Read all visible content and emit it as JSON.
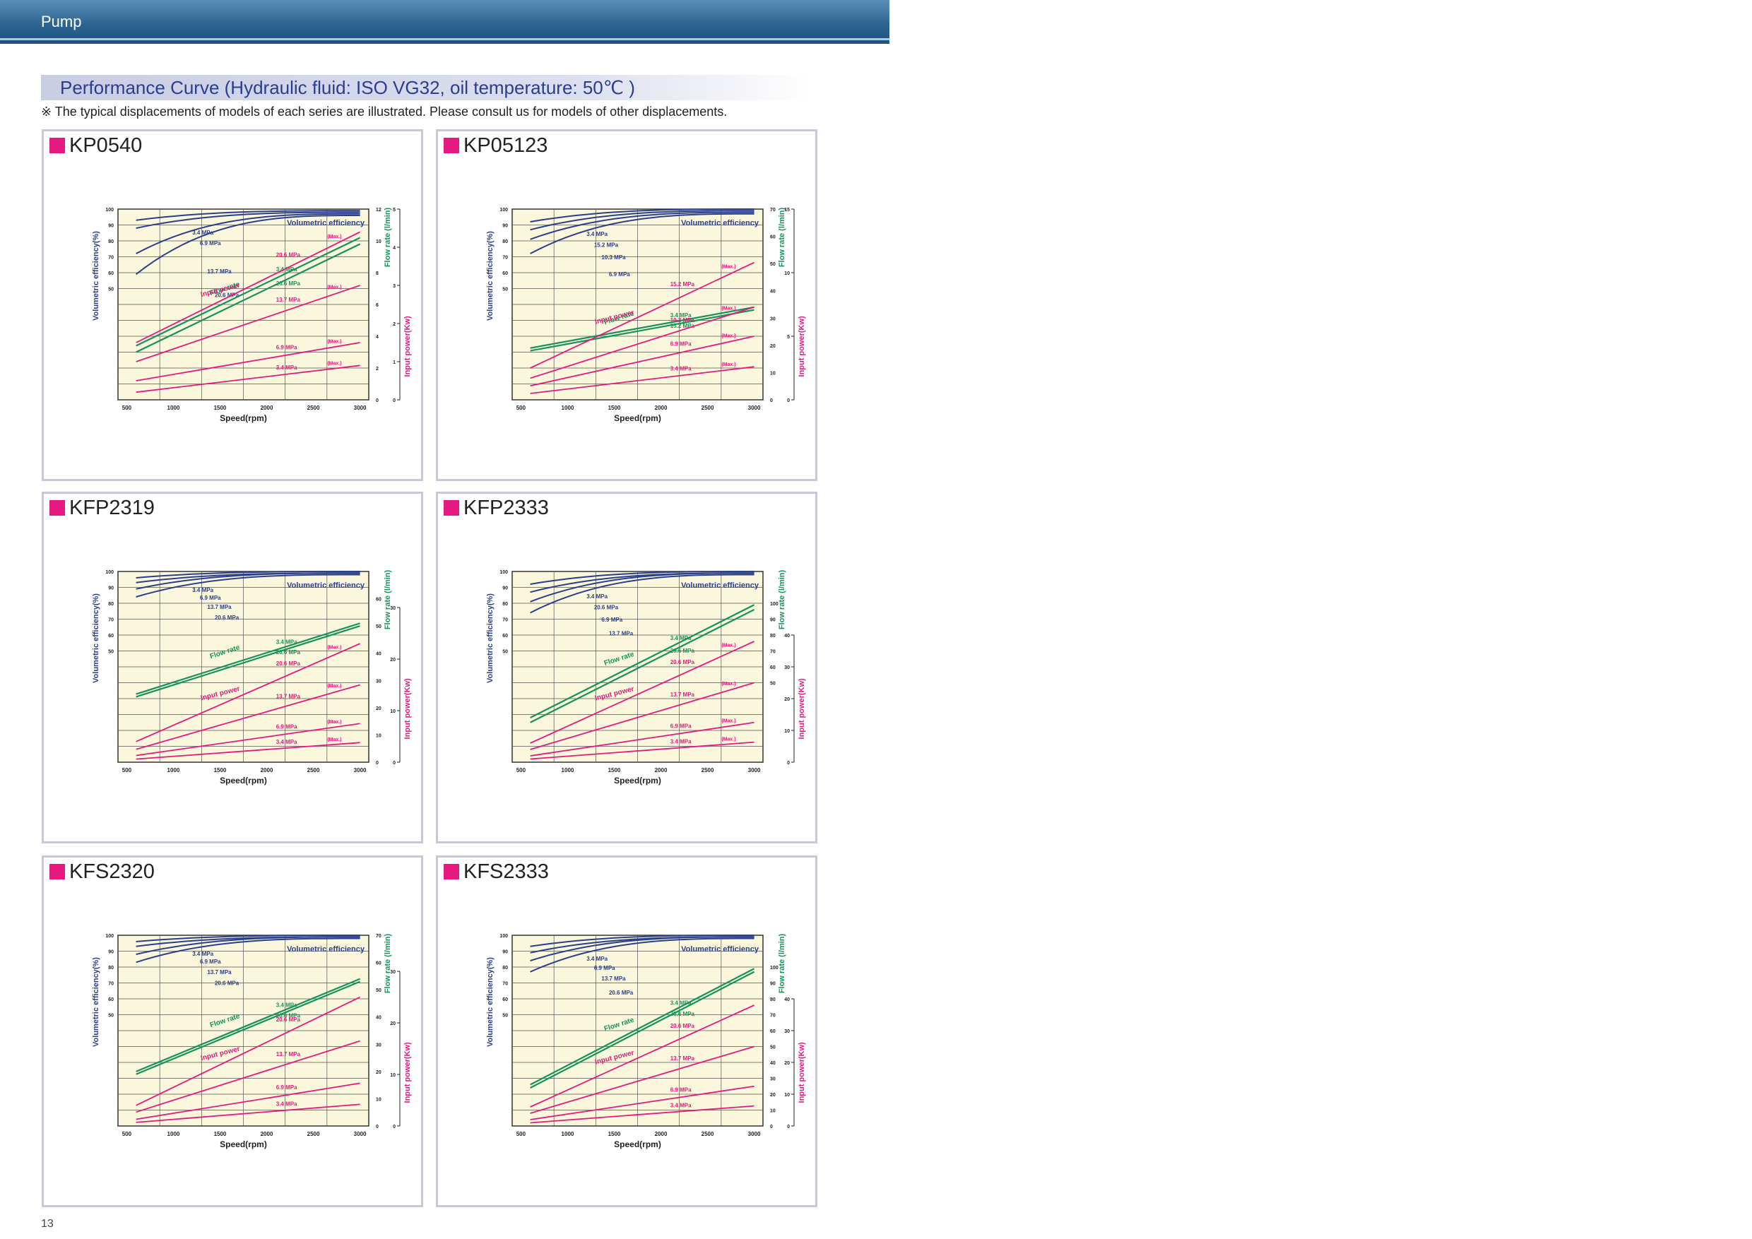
{
  "header": {
    "title": "Pump"
  },
  "section": {
    "title": "Performance Curve (Hydraulic fluid: ISO VG32, oil temperature: 50℃ )",
    "note": "※ The typical displacements of models of each series are illustrated. Please consult us for models of other displacements."
  },
  "page_number": "13",
  "colors": {
    "volumetric": "#2b3f8c",
    "flow": "#16935a",
    "power": "#e6197e",
    "plot_bg": "#fbf7dc",
    "accent_square": "#e6197e"
  },
  "chart_data": [
    {
      "type": "line",
      "title": "KP0540",
      "xlabel": "Speed(rpm)",
      "ylabel_left": "Volumetric efficiency(%)",
      "ylabel_flow": "Flow rate (l/min)",
      "ylabel_power": "Input power(Kw)",
      "x_ticks": [
        "500",
        "1000",
        "1500",
        "2000",
        "2500",
        "3000"
      ],
      "veff_ticks": [
        "100",
        "90",
        "80",
        "70",
        "60",
        "50"
      ],
      "flow_ticks": [
        "12",
        "10",
        "8",
        "6",
        "4",
        "2",
        "0"
      ],
      "power_ticks": [
        "5",
        "4",
        "3",
        "2",
        "1",
        "0"
      ],
      "flow_ymax": 12,
      "power_ymax": 5,
      "veff_curves": [
        {
          "label": "3.4 MPa",
          "start": 93,
          "end": 99
        },
        {
          "label": "6.9 MPa",
          "start": 88,
          "end": 98
        },
        {
          "label": "13.7 MPa",
          "start": 72,
          "end": 97
        },
        {
          "label": "20.6 MPa",
          "start": 59,
          "end": 96
        }
      ],
      "flow_lines": [
        {
          "label": "3.4 MPa",
          "start": 3.4,
          "end": 10.2
        },
        {
          "label": "20.6 MPa",
          "start": 3.0,
          "end": 9.8
        }
      ],
      "flow_label": "Flow rate",
      "power_lines": [
        {
          "label": "20.6 MPa",
          "note": "(Max.)",
          "start": 1.5,
          "end": 4.4
        },
        {
          "label": "13.7 MPa",
          "note": "(Max.)",
          "start": 1.0,
          "end": 3.0
        },
        {
          "label": "6.9 MPa",
          "note": "(Max.)",
          "start": 0.5,
          "end": 1.5
        },
        {
          "label": "3.4 MPa",
          "note": "(Max.)",
          "start": 0.2,
          "end": 0.9
        }
      ],
      "power_label": "Input power",
      "veff_label": "Volumetric efficiency"
    },
    {
      "type": "line",
      "title": "KP05123",
      "xlabel": "Speed(rpm)",
      "ylabel_left": "Volumetric efficiency(%)",
      "ylabel_flow": "Flow rate (l/min)",
      "ylabel_power": "Input power(Kw)",
      "x_ticks": [
        "500",
        "1000",
        "1500",
        "2000",
        "2500",
        "3000"
      ],
      "veff_ticks": [
        "100",
        "90",
        "80",
        "70",
        "60",
        "50"
      ],
      "flow_ticks": [
        "70",
        "60",
        "50",
        "40",
        "30",
        "20",
        "10",
        "0"
      ],
      "power_ticks": [
        "15",
        "10",
        "5",
        "0"
      ],
      "flow_ymax": 70,
      "power_ymax": 15,
      "veff_curves": [
        {
          "label": "3.4 MPa",
          "start": 92,
          "end": 100
        },
        {
          "label": "15.2 MPa",
          "start": 87,
          "end": 99
        },
        {
          "label": "10.3 MPa",
          "start": 81,
          "end": 98
        },
        {
          "label": "6.9 MPa",
          "start": 72,
          "end": 97
        }
      ],
      "flow_lines": [
        {
          "label": "3.4 MPa",
          "start": 19,
          "end": 34
        },
        {
          "label": "15.2 MPa",
          "start": 18,
          "end": 33
        }
      ],
      "flow_label": "Flow rate",
      "power_lines": [
        {
          "label": "15.2 MPa",
          "note": "(Max.)",
          "start": 2.5,
          "end": 10.8
        },
        {
          "label": "10.3 MPa",
          "note": "(Max.)",
          "start": 1.7,
          "end": 7.3
        },
        {
          "label": "6.9 MPa",
          "note": "(Max.)",
          "start": 1.1,
          "end": 5.0
        },
        {
          "label": "3.4 MPa",
          "note": "(Max.)",
          "start": 0.5,
          "end": 2.6
        }
      ],
      "power_label": "Input power",
      "veff_label": "Volumetric efficiency"
    },
    {
      "type": "line",
      "title": "KFP2319",
      "xlabel": "Speed(rpm)",
      "ylabel_left": "Volumetric efficiency(%)",
      "ylabel_flow": "Flow rate (l/min)",
      "ylabel_power": "Input power(Kw)",
      "x_ticks": [
        "500",
        "1000",
        "1500",
        "2000",
        "2500",
        "3000"
      ],
      "veff_ticks": [
        "100",
        "90",
        "80",
        "70",
        "60",
        "50"
      ],
      "flow_ticks": [
        "60",
        "50",
        "40",
        "30",
        "20",
        "10",
        "0"
      ],
      "power_ticks": [
        "30",
        "20",
        "10",
        "0"
      ],
      "flow_ymax": 70,
      "power_ymax": 37,
      "veff_curves": [
        {
          "label": "3.4 MPa",
          "start": 96,
          "end": 100
        },
        {
          "label": "6.9 MPa",
          "start": 93,
          "end": 99
        },
        {
          "label": "13.7 MPa",
          "start": 89,
          "end": 99
        },
        {
          "label": "20.6 MPa",
          "start": 84,
          "end": 98
        }
      ],
      "flow_lines": [
        {
          "label": "3.4 MPa",
          "start": 25,
          "end": 51
        },
        {
          "label": "20.6 MPa",
          "start": 24,
          "end": 50
        }
      ],
      "flow_label": "Flow rate",
      "power_lines": [
        {
          "label": "20.6 MPa",
          "note": "(Max.)",
          "start": 4,
          "end": 23
        },
        {
          "label": "13.7 MPa",
          "note": "(Max.)",
          "start": 2.5,
          "end": 15
        },
        {
          "label": "6.9 MPa",
          "note": "(Max.)",
          "start": 1.3,
          "end": 7.5
        },
        {
          "label": "3.4 MPa",
          "note": "(Max.)",
          "start": 0.6,
          "end": 3.8
        }
      ],
      "power_label": "Input power",
      "veff_label": "Volumetric efficiency"
    },
    {
      "type": "line",
      "title": "KFP2333",
      "xlabel": "Speed(rpm)",
      "ylabel_left": "Volumetric efficiency(%)",
      "ylabel_flow": "Flow rate (l/min)",
      "ylabel_power": "Input power(Kw)",
      "x_ticks": [
        "500",
        "1000",
        "1500",
        "2000",
        "2500",
        "3000"
      ],
      "veff_ticks": [
        "100",
        "90",
        "80",
        "70",
        "60",
        "50"
      ],
      "flow_ticks": [
        "100",
        "90",
        "80",
        "70",
        "60",
        "50"
      ],
      "power_ticks": [
        "40",
        "30",
        "20",
        "10",
        "0"
      ],
      "flow_ymax": 120,
      "power_ymax": 60,
      "veff_curves": [
        {
          "label": "3.4 MPa",
          "start": 92,
          "end": 100
        },
        {
          "label": "20.6 MPa",
          "start": 87,
          "end": 99
        },
        {
          "label": "6.9 MPa",
          "start": 81,
          "end": 99
        },
        {
          "label": "13.7 MPa",
          "start": 74,
          "end": 98
        }
      ],
      "flow_lines": [
        {
          "label": "3.4 MPa",
          "start": 28,
          "end": 99
        },
        {
          "label": "20.6 MPa",
          "start": 25,
          "end": 96
        }
      ],
      "flow_label": "Flow rate",
      "power_lines": [
        {
          "label": "20.6 MPa",
          "note": "(Max.)",
          "start": 6,
          "end": 38
        },
        {
          "label": "13.7 MPa",
          "note": "(Max.)",
          "start": 4,
          "end": 25
        },
        {
          "label": "6.9 MPa",
          "note": "(Max.)",
          "start": 2,
          "end": 12.5
        },
        {
          "label": "3.4 MPa",
          "note": "(Max.)",
          "start": 1,
          "end": 6.3
        }
      ],
      "power_label": "Input power",
      "veff_label": "Volumetric efficiency"
    },
    {
      "type": "line",
      "title": "KFS2320",
      "xlabel": "Speed(rpm)",
      "ylabel_left": "Volumetric efficiency(%)",
      "ylabel_flow": "Flow rate (l/min)",
      "ylabel_power": "Input power(Kw)",
      "x_ticks": [
        "500",
        "1000",
        "1500",
        "2000",
        "2500",
        "3000"
      ],
      "veff_ticks": [
        "100",
        "90",
        "80",
        "70",
        "60",
        "50"
      ],
      "flow_ticks": [
        "70",
        "60",
        "50",
        "40",
        "30",
        "20",
        "10",
        "0"
      ],
      "power_ticks": [
        "30",
        "20",
        "10",
        "0"
      ],
      "flow_ymax": 70,
      "power_ymax": 37,
      "veff_curves": [
        {
          "label": "3.4 MPa",
          "start": 96,
          "end": 100
        },
        {
          "label": "6.9 MPa",
          "start": 93,
          "end": 99
        },
        {
          "label": "13.7 MPa",
          "start": 88,
          "end": 99
        },
        {
          "label": "20.6 MPa",
          "start": 83,
          "end": 98
        }
      ],
      "flow_lines": [
        {
          "label": "3.4 MPa",
          "start": 20,
          "end": 54
        },
        {
          "label": "20.6 MPa",
          "start": 19,
          "end": 53
        }
      ],
      "flow_label": "Flow rate",
      "power_lines": [
        {
          "label": "20.6 MPa",
          "start": 4,
          "end": 25
        },
        {
          "label": "13.7 MPa",
          "start": 2.7,
          "end": 16.5
        },
        {
          "label": "6.9 MPa",
          "start": 1.3,
          "end": 8.3
        },
        {
          "label": "3.4 MPa",
          "start": 0.7,
          "end": 4.2
        }
      ],
      "power_label": "Input power",
      "veff_label": "Volumetric efficiency"
    },
    {
      "type": "line",
      "title": "KFS2333",
      "xlabel": "Speed(rpm)",
      "ylabel_left": "Volumetric efficiency(%)",
      "ylabel_flow": "Flow rate (l/min)",
      "ylabel_power": "Input power(Kw)",
      "x_ticks": [
        "500",
        "1000",
        "1500",
        "2000",
        "2500",
        "3000"
      ],
      "veff_ticks": [
        "100",
        "90",
        "80",
        "70",
        "60",
        "50"
      ],
      "flow_ticks": [
        "100",
        "90",
        "80",
        "70",
        "60",
        "50",
        "40",
        "30",
        "20",
        "10",
        "0"
      ],
      "power_ticks": [
        "40",
        "30",
        "20",
        "10",
        "0"
      ],
      "flow_ymax": 120,
      "power_ymax": 60,
      "veff_curves": [
        {
          "label": "3.4 MPa",
          "start": 93,
          "end": 100
        },
        {
          "label": "6.9 MPa",
          "start": 89,
          "end": 99
        },
        {
          "label": "13.7 MPa",
          "start": 84,
          "end": 99
        },
        {
          "label": "20.6 MPa",
          "start": 77,
          "end": 98
        }
      ],
      "flow_lines": [
        {
          "label": "3.4 MPa",
          "start": 26,
          "end": 99
        },
        {
          "label": "20.6 MPa",
          "start": 24,
          "end": 97
        }
      ],
      "flow_label": "Flow rate",
      "power_lines": [
        {
          "label": "20.6 MPa",
          "start": 6,
          "end": 38
        },
        {
          "label": "13.7 MPa",
          "start": 4,
          "end": 25
        },
        {
          "label": "6.9 MPa",
          "start": 2,
          "end": 12.5
        },
        {
          "label": "3.4 MPa",
          "start": 1,
          "end": 6.3
        }
      ],
      "power_label": "Input power",
      "veff_label": "Volumetric efficiency"
    }
  ]
}
